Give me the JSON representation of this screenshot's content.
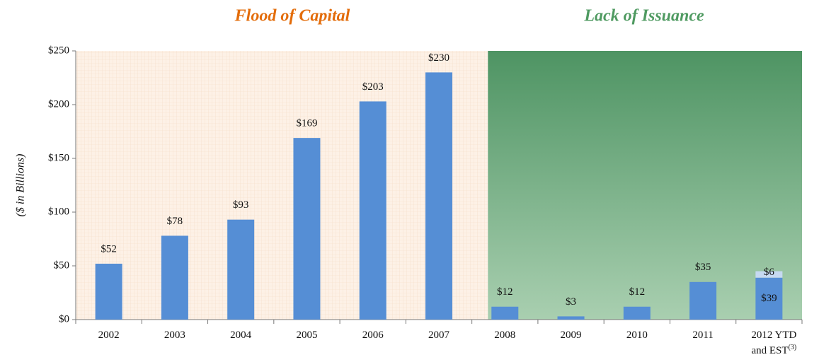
{
  "chart_data": {
    "type": "bar",
    "regions": [
      {
        "label": "Flood of Capital",
        "color": "#e36c0a"
      },
      {
        "label": "Lack of Issuance",
        "color": "#4f9a61"
      }
    ],
    "y_label": "($ in Billions)",
    "categories": [
      "2002",
      "2003",
      "2004",
      "2005",
      "2006",
      "2007",
      "2008",
      "2009",
      "2010",
      "2011",
      "2012 YTD and EST"
    ],
    "footnote_marker": "(3)",
    "series": [
      {
        "color": "#558ed5",
        "values": [
          52,
          78,
          93,
          169,
          203,
          230,
          12,
          3,
          12,
          35,
          39
        ],
        "value_labels": [
          "$52",
          "$78",
          "$93",
          "$169",
          "$203",
          "$230",
          "$12",
          "$3",
          "$12",
          "$35",
          "$39"
        ]
      },
      {
        "color": "#c6d9f1",
        "values": [
          null,
          null,
          null,
          null,
          null,
          null,
          null,
          null,
          null,
          null,
          6
        ],
        "value_labels": [
          null,
          null,
          null,
          null,
          null,
          null,
          null,
          null,
          null,
          null,
          "$6"
        ]
      }
    ],
    "ylim": [
      0,
      250
    ],
    "yticks": [
      {
        "value": 0,
        "label": "$0"
      },
      {
        "value": 50,
        "label": "$50"
      },
      {
        "value": 100,
        "label": "$100"
      },
      {
        "value": 150,
        "label": "$150"
      },
      {
        "value": 200,
        "label": "$200"
      },
      {
        "value": 250,
        "label": "$250"
      }
    ]
  }
}
